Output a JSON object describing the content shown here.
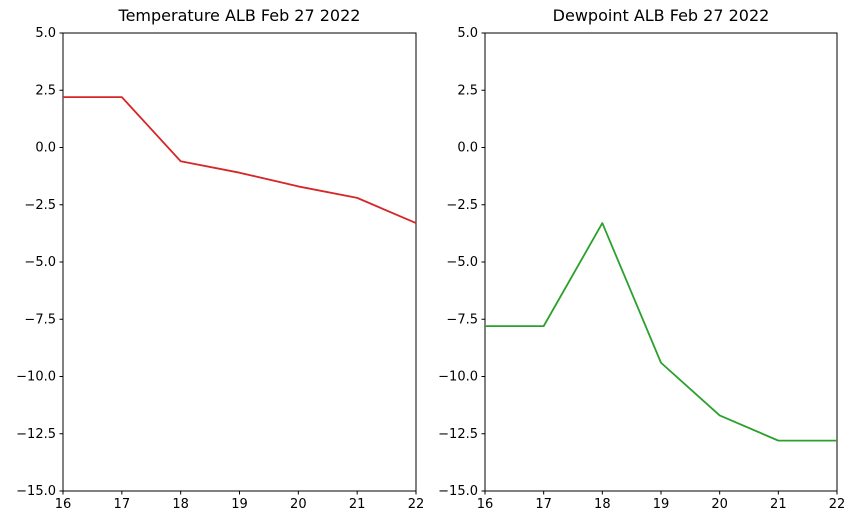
{
  "figure": {
    "background": "#ffffff",
    "axis_color": "#000000",
    "text_color": "#000000"
  },
  "chart_data": [
    {
      "type": "line",
      "title": "Temperature ALB Feb 27 2022",
      "series_name": "temperature",
      "line_color": "#d62728",
      "x": [
        16,
        17,
        18,
        19,
        20,
        21,
        22
      ],
      "values": [
        2.2,
        2.2,
        -0.6,
        -1.1,
        -1.7,
        -2.2,
        -3.3
      ],
      "xlim": [
        16,
        22
      ],
      "ylim": [
        -15.0,
        5.0
      ],
      "xticks": [
        16,
        17,
        18,
        19,
        20,
        21,
        22
      ],
      "xtick_labels": [
        "16",
        "17",
        "18",
        "19",
        "20",
        "21",
        "22"
      ],
      "yticks": [
        5.0,
        2.5,
        0.0,
        -2.5,
        -5.0,
        -7.5,
        -10.0,
        -12.5,
        -15.0
      ],
      "ytick_labels": [
        "5.0",
        "2.5",
        "0.0",
        "−2.5",
        "−5.0",
        "−7.5",
        "−10.0",
        "−12.5",
        "−15.0"
      ],
      "grid": false,
      "legend": "none"
    },
    {
      "type": "line",
      "title": "Dewpoint ALB Feb 27 2022",
      "series_name": "dewpoint",
      "line_color": "#2ca02c",
      "x": [
        16,
        17,
        18,
        19,
        20,
        21,
        22
      ],
      "values": [
        -7.8,
        -7.8,
        -3.3,
        -9.4,
        -11.7,
        -12.8,
        -12.8
      ],
      "xlim": [
        16,
        22
      ],
      "ylim": [
        -15.0,
        5.0
      ],
      "xticks": [
        16,
        17,
        18,
        19,
        20,
        21,
        22
      ],
      "xtick_labels": [
        "16",
        "17",
        "18",
        "19",
        "20",
        "21",
        "22"
      ],
      "yticks": [
        5.0,
        2.5,
        0.0,
        -2.5,
        -5.0,
        -7.5,
        -10.0,
        -12.5,
        -15.0
      ],
      "ytick_labels": [
        "5.0",
        "2.5",
        "0.0",
        "−2.5",
        "−5.0",
        "−7.5",
        "−10.0",
        "−12.5",
        "−15.0"
      ],
      "grid": false,
      "legend": "none"
    }
  ]
}
